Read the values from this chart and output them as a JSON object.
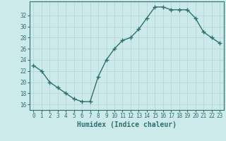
{
  "x": [
    0,
    1,
    2,
    3,
    4,
    5,
    6,
    7,
    8,
    9,
    10,
    11,
    12,
    13,
    14,
    15,
    16,
    17,
    18,
    19,
    20,
    21,
    22,
    23
  ],
  "y": [
    23,
    22,
    20,
    19,
    18,
    17,
    16.5,
    16.5,
    21,
    24,
    26,
    27.5,
    28,
    29.5,
    31.5,
    33.5,
    33.5,
    33,
    33,
    33,
    31.5,
    29,
    28,
    27
  ],
  "line_color": "#2e7070",
  "marker": "+",
  "marker_size": 4,
  "marker_linewidth": 1.0,
  "bg_color": "#cceaea",
  "grid_major_color": "#b8d8d8",
  "grid_minor_color": "#c8e4e4",
  "xlabel": "Humidex (Indice chaleur)",
  "xlabel_fontsize": 7,
  "xlabel_color": "#2e7070",
  "ytick_labels": [
    "16",
    "18",
    "20",
    "22",
    "24",
    "26",
    "28",
    "30",
    "32"
  ],
  "ytick_vals": [
    16,
    18,
    20,
    22,
    24,
    26,
    28,
    30,
    32
  ],
  "ylim": [
    15.0,
    34.5
  ],
  "xlim": [
    -0.5,
    23.5
  ],
  "tick_fontsize": 5.5,
  "line_width": 1.0
}
